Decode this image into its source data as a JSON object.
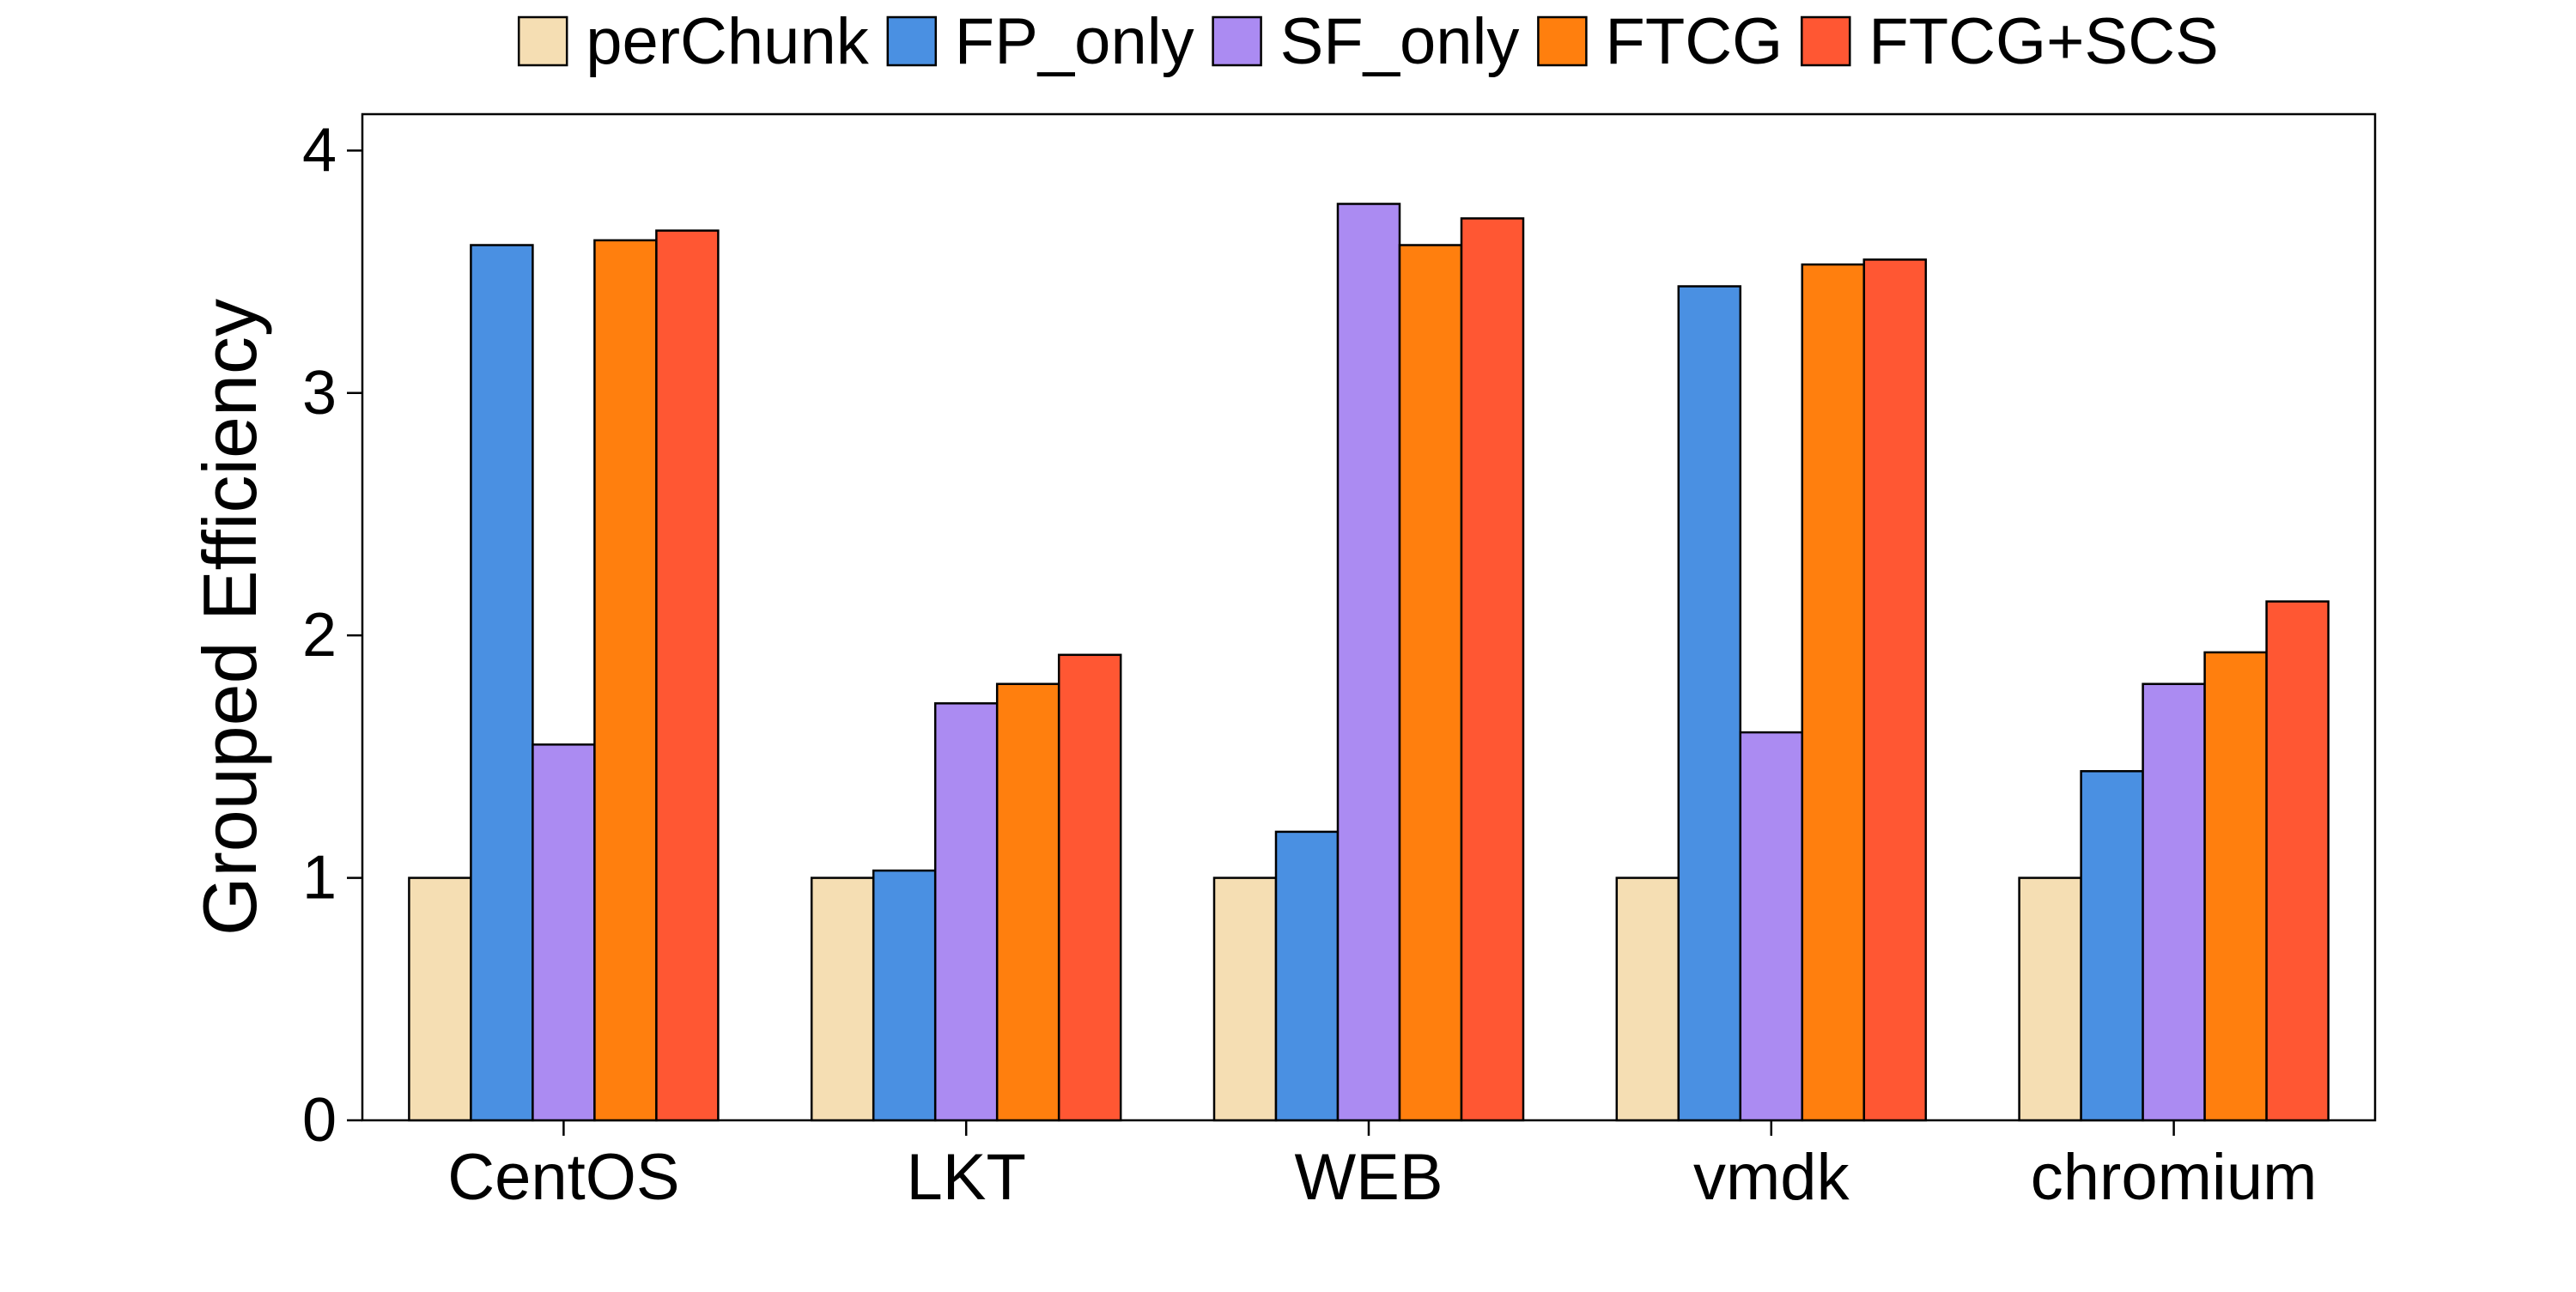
{
  "chart_data": {
    "type": "bar",
    "title": "",
    "xlabel": "",
    "ylabel": "Grouped Efficiency",
    "ylim": [
      0,
      4.15
    ],
    "yticks": [
      0,
      1,
      2,
      3,
      4
    ],
    "grid": false,
    "legend_position": "top",
    "categories": [
      "CentOS",
      "LKT",
      "WEB",
      "vmdk",
      "chromium"
    ],
    "series": [
      {
        "name": "perChunk",
        "color": "#F5DEB3",
        "values": [
          1.0,
          1.0,
          1.0,
          1.0,
          1.0
        ]
      },
      {
        "name": "FP_only",
        "color": "#4A90E2",
        "values": [
          3.61,
          1.03,
          1.19,
          3.44,
          1.44
        ]
      },
      {
        "name": "SF_only",
        "color": "#AB8BF2",
        "values": [
          1.55,
          1.72,
          3.78,
          1.6,
          1.8
        ]
      },
      {
        "name": "FTCG",
        "color": "#FF7F0E",
        "values": [
          3.63,
          1.8,
          3.61,
          3.53,
          1.93
        ]
      },
      {
        "name": "FTCG+SCS",
        "color": "#FF5733",
        "values": [
          3.67,
          1.92,
          3.72,
          3.55,
          2.14
        ]
      }
    ]
  }
}
